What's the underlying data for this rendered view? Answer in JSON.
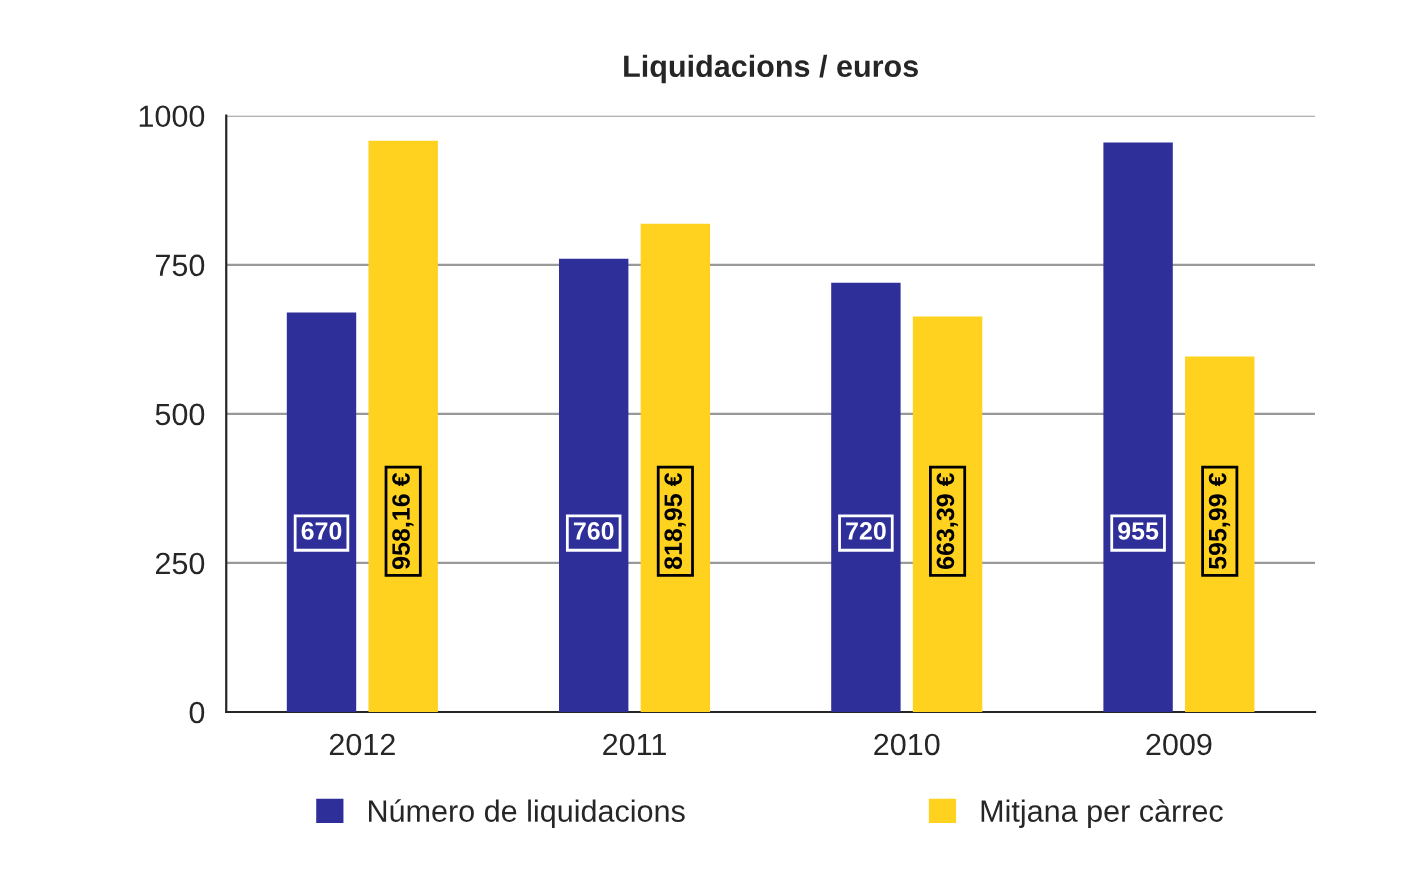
{
  "chart_data": {
    "type": "bar",
    "title": "Liquidacions / euros",
    "categories": [
      "2012",
      "2011",
      "2010",
      "2009"
    ],
    "series": [
      {
        "name": "Número de liquidacions",
        "color": "#2f2f9a",
        "values": [
          670,
          760,
          720,
          955
        ],
        "value_labels": [
          "670",
          "760",
          "720",
          "955"
        ]
      },
      {
        "name": "Mitjana per càrrec",
        "color": "#ffd21f",
        "values": [
          958.16,
          818.95,
          663.39,
          595.99
        ],
        "value_labels": [
          "958,16 €",
          "818,95 €",
          "663,39 €",
          "595,99 €"
        ]
      }
    ],
    "ylim": [
      0,
      1000
    ],
    "yticks": [
      0,
      250,
      500,
      750,
      1000
    ],
    "grid": "y",
    "legend": "bottom"
  }
}
